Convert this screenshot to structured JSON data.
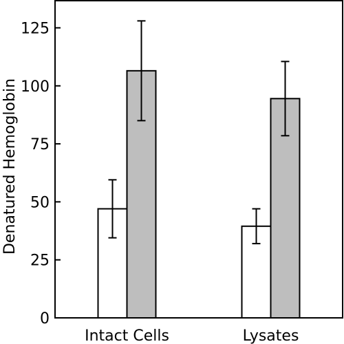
{
  "chart_data": {
    "type": "bar",
    "title": "",
    "xlabel": "",
    "ylabel": "Denatured Hemoglobin",
    "categories": [
      "Intact Cells",
      "Lysates"
    ],
    "ylim": [
      0,
      137
    ],
    "yticks": [
      0,
      25,
      50,
      75,
      100,
      125
    ],
    "grid": false,
    "legend": "none",
    "series": [
      {
        "values": [
          47,
          39.5
        ],
        "errors": [
          12.5,
          7.5
        ],
        "color": "#ffffff"
      },
      {
        "values": [
          106.5,
          94.5
        ],
        "errors": [
          21.5,
          16
        ],
        "color": "#bebebe"
      }
    ]
  }
}
